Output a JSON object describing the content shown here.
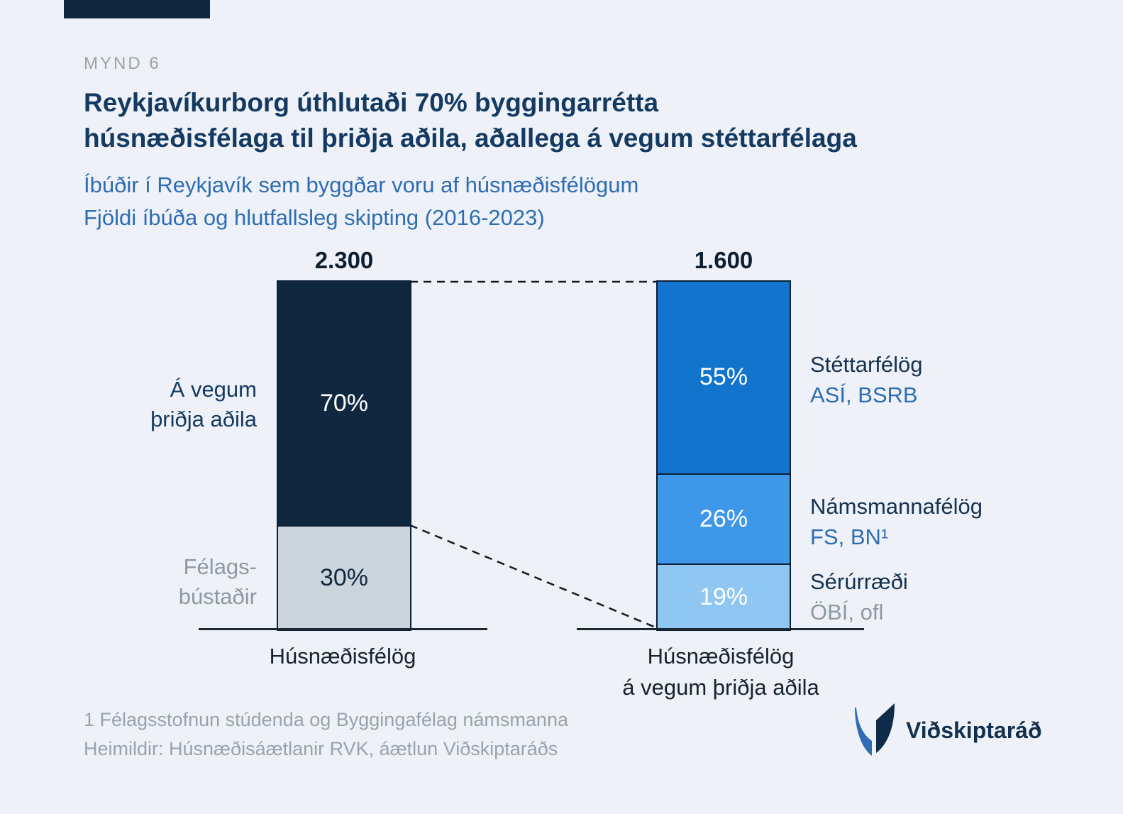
{
  "colors": {
    "background": "#eef2f8",
    "brand_bar": "#10283f",
    "title": "#153a61",
    "subtitle_blue": "#2e6cb3",
    "muted_gray": "#98a2ae",
    "axis": "#1b2733"
  },
  "page": {
    "figure_label": "MYND 6",
    "title_line1": "Reykjavíkurborg úthlutaði 70% byggingarrétta",
    "title_line2": "húsnæðisfélaga til þriðja aðila, aðallega á vegum stéttarfélaga",
    "subtitle_line1": "Íbúðir í Reykjavík sem byggðar voru af húsnæðisfélögum",
    "subtitle_line2": "Fjöldi íbúða og hlutfallsleg skipting (2016-2023)"
  },
  "chart_data": {
    "type": "bar",
    "subtype": "stacked-percentage",
    "title": "Reykjavíkurborg úthlutaði 70% byggingarrétta húsnæðisfélaga til þriðja aðila, aðallega á vegum stéttarfélaga",
    "subtitle": "Íbúðir í Reykjavík sem byggðar voru af húsnæðisfélögum — Fjöldi íbúða og hlutfallsleg skipting (2016-2023)",
    "legend_position": "right",
    "grid": false,
    "bars": [
      {
        "total_label": "2.300",
        "total_value": 2300,
        "x_label_line1": "Húsnæðisfélög",
        "x_label_line2": "",
        "segments": [
          {
            "name": "Á vegum þriðja aðila",
            "pct": 70,
            "pct_label": "70%",
            "color": "#10283f",
            "label_color": "#ffffff"
          },
          {
            "name": "Félagsbústaðir",
            "pct": 30,
            "pct_label": "30%",
            "color": "#ccd5de",
            "label_color": "#10283f"
          }
        ]
      },
      {
        "total_label": "1.600",
        "total_value": 1600,
        "x_label_line1": "Húsnæðisfélög",
        "x_label_line2": "á vegum þriðja aðila",
        "segments": [
          {
            "name": "Stéttarfélög",
            "sub": "ASÍ, BSRB",
            "sub_color": "#2e6cb3",
            "pct": 55,
            "pct_label": "55%",
            "color": "#1374cd",
            "label_color": "#ffffff"
          },
          {
            "name": "Námsmannafélög",
            "sub": "FS, BN¹",
            "sub_color": "#2e6cb3",
            "pct": 26,
            "pct_label": "26%",
            "color": "#3e97e8",
            "label_color": "#ffffff"
          },
          {
            "name": "Sérúrræði",
            "sub": "ÖBÍ, ofl",
            "sub_color": "#8d98a4",
            "pct": 19,
            "pct_label": "19%",
            "color": "#8fc6f2",
            "label_color": "#ffffff"
          }
        ]
      }
    ],
    "side_labels_left": [
      {
        "line1": "Á vegum",
        "line2": "þriðja aðila"
      },
      {
        "line1": "Félags-",
        "line2": "bústaðir"
      }
    ]
  },
  "footnotes": {
    "line1": "1 Félagsstofnun stúdenda og Byggingafélag námsmanna",
    "line2": "Heimildir: Húsnæðisáætlanir RVK, áætlun Viðskiptaráðs"
  },
  "logo": {
    "text": "Viðskiptaráð"
  }
}
